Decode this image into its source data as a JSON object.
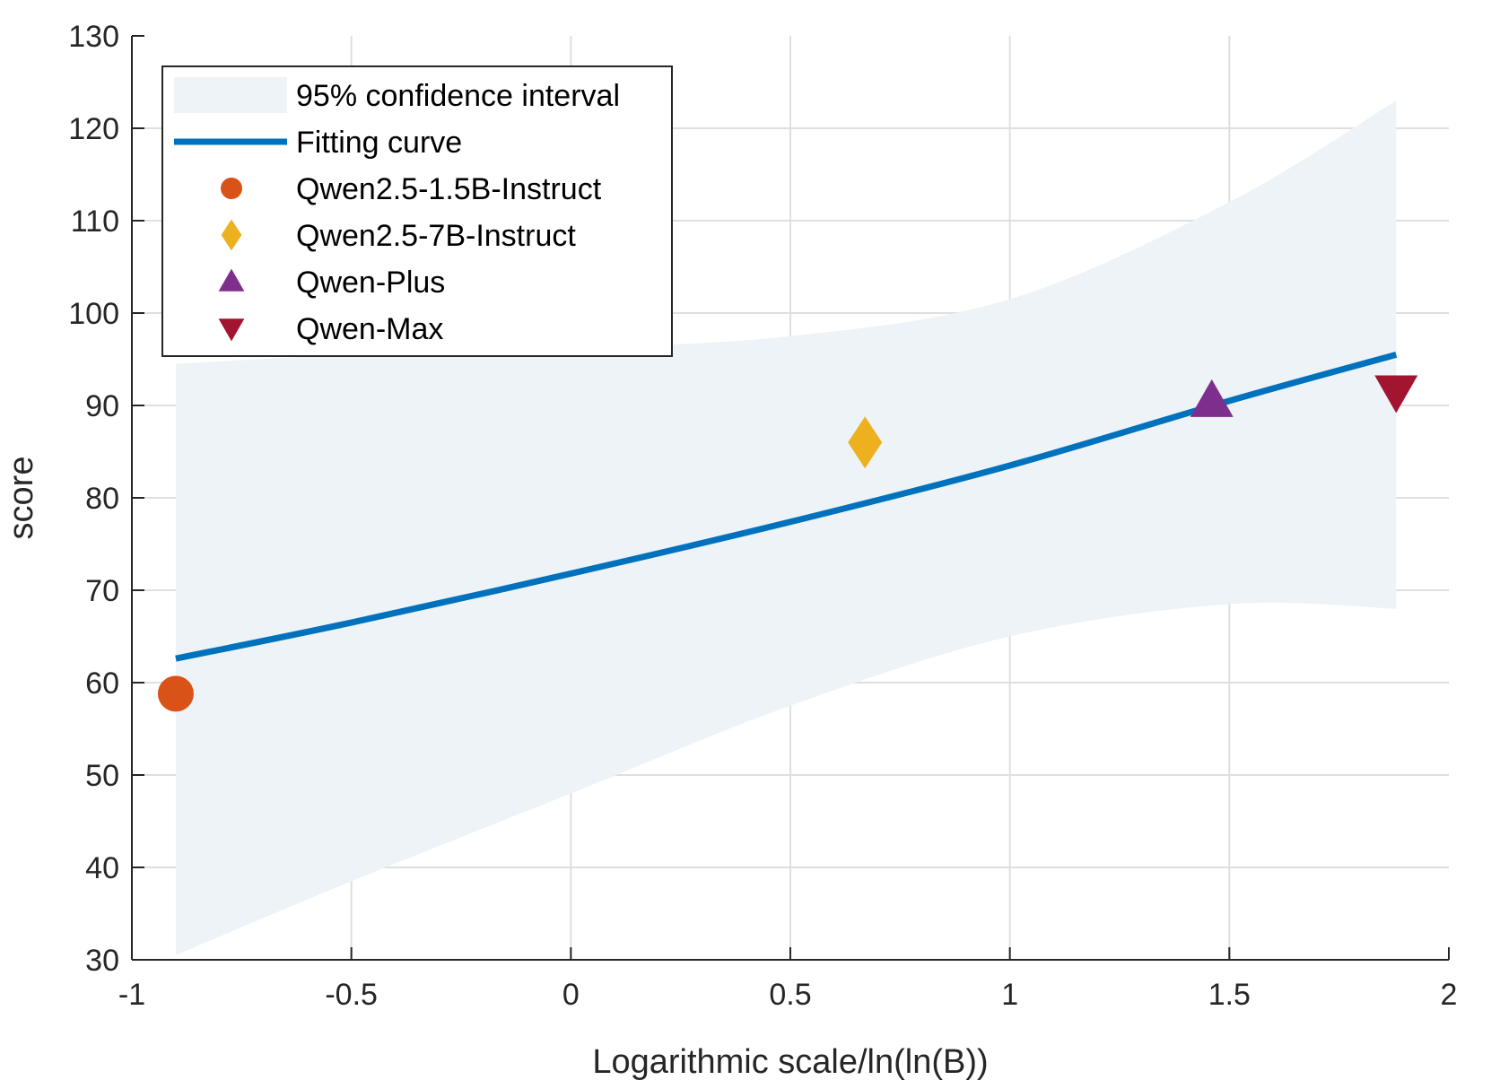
{
  "chart_data": {
    "type": "scatter",
    "title": "",
    "xlabel": "Logarithmic scale/ln(ln(B))",
    "ylabel": "score",
    "xlim": [
      -1,
      2
    ],
    "ylim": [
      30,
      130
    ],
    "xticks": [
      -1,
      -0.5,
      0,
      0.5,
      1,
      1.5,
      2
    ],
    "xtick_labels": [
      "-1",
      "-0.5",
      "0",
      "0.5",
      "1",
      "1.5",
      "2"
    ],
    "yticks": [
      30,
      40,
      50,
      60,
      70,
      80,
      90,
      100,
      110,
      120,
      130
    ],
    "ytick_labels": [
      "30",
      "40",
      "50",
      "60",
      "70",
      "80",
      "90",
      "100",
      "110",
      "120",
      "130"
    ],
    "grid": true,
    "legend_position": "top-left",
    "confidence_band": {
      "name": "95% confidence interval",
      "color": "#edf3f6",
      "x": [
        -0.9,
        -0.5,
        0,
        0.5,
        1,
        1.5,
        1.88
      ],
      "upper": [
        94.5,
        95.5,
        96.2,
        97.5,
        101.5,
        112,
        123
      ],
      "lower": [
        30.5,
        38.5,
        48,
        57.5,
        65,
        68.5,
        68
      ]
    },
    "fit_curve": {
      "name": "Fitting curve",
      "color": "#0072bd",
      "x": [
        -0.9,
        -0.5,
        0,
        0.5,
        1,
        1.5,
        1.88
      ],
      "y": [
        62.6,
        66.5,
        71.8,
        77.4,
        83.5,
        90.5,
        95.5
      ]
    },
    "points": [
      {
        "name": "Qwen2.5-1.5B-Instruct",
        "x": -0.9,
        "y": 58.8,
        "marker": "circle",
        "color": "#d95319"
      },
      {
        "name": "Qwen2.5-7B-Instruct",
        "x": 0.67,
        "y": 86,
        "marker": "diamond",
        "color": "#edb120"
      },
      {
        "name": "Qwen-Plus",
        "x": 1.46,
        "y": 90.5,
        "marker": "triangle-up",
        "color": "#7e2f8e"
      },
      {
        "name": "Qwen-Max",
        "x": 1.88,
        "y": 91.5,
        "marker": "triangle-down",
        "color": "#a2142f"
      }
    ]
  }
}
